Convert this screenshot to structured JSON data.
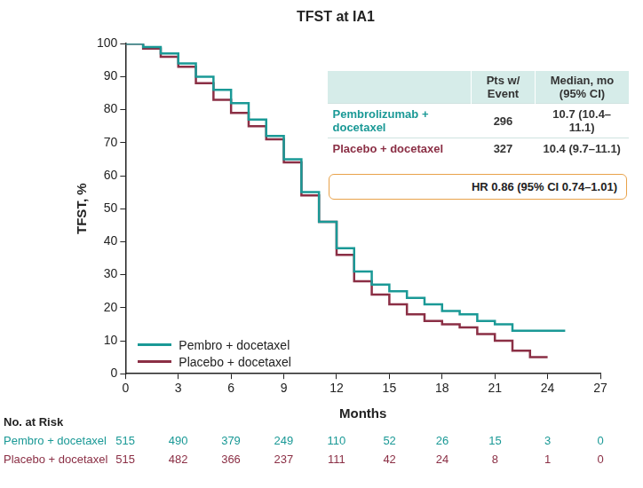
{
  "chart_data": {
    "type": "line",
    "title": "TFST at IA1",
    "x_label": "Months",
    "y_label": "TFST, %",
    "x": [
      0,
      1,
      2,
      3,
      4,
      5,
      6,
      7,
      8,
      9,
      10,
      11,
      12,
      13,
      14,
      15,
      16,
      17,
      18,
      19,
      20,
      21,
      22,
      23,
      24,
      25
    ],
    "series": [
      {
        "name": "Pembro + docetaxel",
        "color": "#1a9996",
        "line_style": "steps",
        "values": [
          100,
          99,
          97,
          94,
          90,
          86,
          82,
          77,
          72,
          65,
          55,
          46,
          38,
          31,
          27,
          25,
          23,
          21,
          19,
          18,
          16,
          15,
          13,
          13,
          13,
          13
        ]
      },
      {
        "name": "Placebo + docetaxel",
        "color": "#8b2f45",
        "line_style": "steps",
        "values": [
          100,
          98.5,
          96,
          93,
          88,
          83,
          79,
          75,
          71,
          64,
          54,
          46,
          36,
          28,
          24,
          21,
          18,
          16,
          15,
          14,
          12,
          10,
          7,
          5,
          5,
          null
        ]
      }
    ],
    "xlim": [
      0,
      27
    ],
    "xticks": [
      0,
      3,
      6,
      9,
      12,
      15,
      18,
      21,
      24,
      27
    ],
    "ylim": [
      0,
      100
    ],
    "yticks": [
      0,
      10,
      20,
      30,
      40,
      50,
      60,
      70,
      80,
      90,
      100
    ],
    "grid": false,
    "legend": "bottom-left",
    "summary_table": {
      "header": [
        "Pts w/ Event",
        "Median, mo (95% CI)"
      ],
      "rows": [
        {
          "name": "Pembrolizumab + docetaxel",
          "events": 296,
          "median": "10.7 (10.4–11.1)"
        },
        {
          "name": "Placebo + docetaxel",
          "events": 327,
          "median": "10.4 (9.7–11.1)"
        }
      ]
    },
    "annotation": "HR 0.86 (95% CI 0.74–1.01)",
    "at_risk": {
      "title": "No. at Risk",
      "rows": [
        {
          "name": "Pembro + docetaxel",
          "values": [
            515,
            490,
            379,
            249,
            110,
            52,
            26,
            15,
            3,
            0
          ]
        },
        {
          "name": "Placebo + docetaxel",
          "values": [
            515,
            482,
            366,
            237,
            111,
            42,
            24,
            8,
            1,
            0
          ]
        }
      ]
    }
  }
}
